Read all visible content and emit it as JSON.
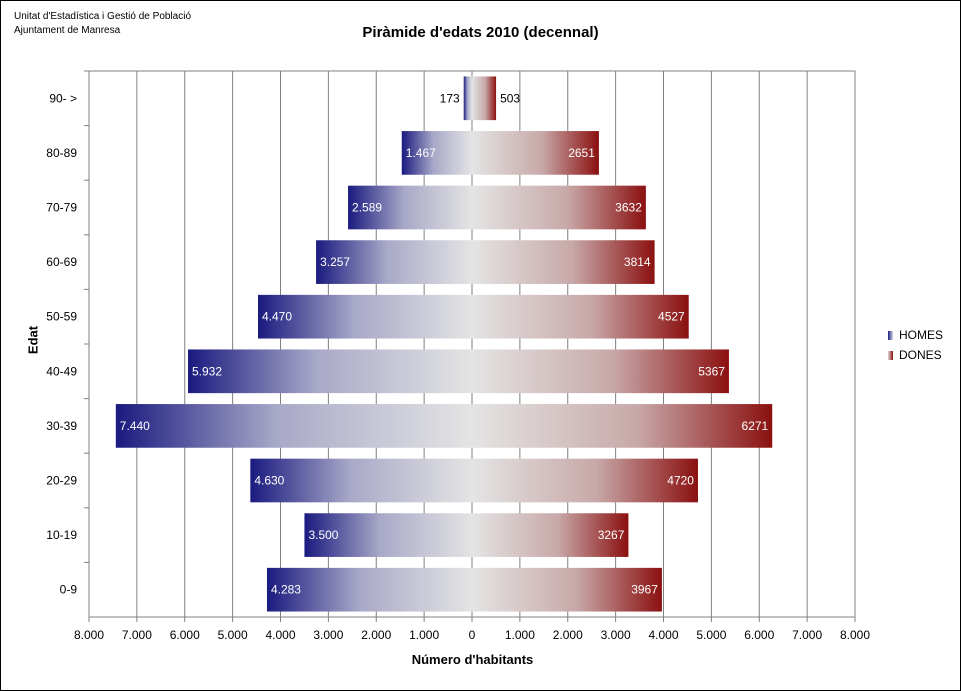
{
  "source": {
    "line1": "Unitat d'Estadística i Gestió de Població",
    "line2": "Ajuntament de Manresa"
  },
  "chart_data": {
    "type": "bar",
    "orientation": "horizontal",
    "title": "Piràmide d'edats 2010 (decennal)",
    "xlabel": "Número d'habitants",
    "ylabel": "Edat",
    "categories": [
      "90- >",
      "80-89",
      "70-79",
      "60-69",
      "50-59",
      "40-49",
      "30-39",
      "20-29",
      "10-19",
      "0-9"
    ],
    "series": [
      {
        "name": "HOMES",
        "values": [
          173,
          1467,
          2589,
          3257,
          4470,
          5932,
          7440,
          4630,
          3500,
          4283
        ],
        "labels": [
          "173",
          "1.467",
          "2.589",
          "3.257",
          "4.470",
          "5.932",
          "7.440",
          "4.630",
          "3.500",
          "4.283"
        ],
        "color": "#1a1a80"
      },
      {
        "name": "DONES",
        "values": [
          503,
          2651,
          3632,
          3814,
          4527,
          5367,
          6271,
          4720,
          3267,
          3967
        ],
        "labels": [
          "503",
          "2651",
          "3632",
          "3814",
          "4527",
          "5367",
          "6271",
          "4720",
          "3267",
          "3967"
        ],
        "color": "#8b1010"
      }
    ],
    "xlim": [
      -8000,
      8000
    ],
    "xticks": [
      -8000,
      -7000,
      -6000,
      -5000,
      -4000,
      -3000,
      -2000,
      -1000,
      0,
      1000,
      2000,
      3000,
      4000,
      5000,
      6000,
      7000,
      8000
    ],
    "xtick_labels": [
      "8.000",
      "7.000",
      "6.000",
      "5.000",
      "4.000",
      "3.000",
      "2.000",
      "1.000",
      "0",
      "1.000",
      "2.000",
      "3.000",
      "4.000",
      "5.000",
      "6.000",
      "7.000",
      "8.000"
    ],
    "grid": true,
    "legend": "right"
  }
}
